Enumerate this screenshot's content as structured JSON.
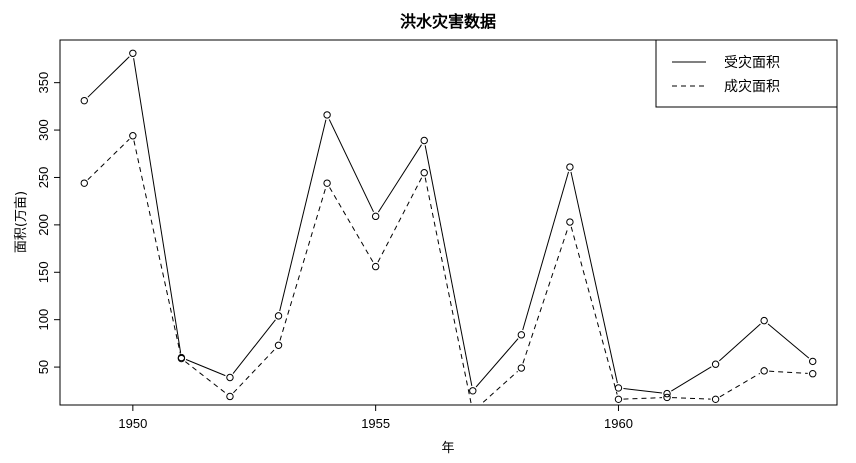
{
  "chart_data": {
    "type": "line",
    "title": "洪水灾害数据",
    "xlabel": "年",
    "ylabel": "面积(万亩)",
    "x": [
      1949,
      1950,
      1951,
      1952,
      1953,
      1954,
      1955,
      1956,
      1957,
      1958,
      1959,
      1960,
      1961,
      1962,
      1963,
      1964
    ],
    "xlim": [
      1948.5,
      1964.5
    ],
    "ylim": [
      10,
      395
    ],
    "x_ticks": [
      1950,
      1955,
      1960
    ],
    "y_ticks": [
      50,
      100,
      150,
      200,
      250,
      300,
      350
    ],
    "grid": false,
    "legend_position": "top-right",
    "series": [
      {
        "name": "受灾面积",
        "line_style": "solid",
        "color": "#000000",
        "values": [
          331,
          381,
          60,
          39,
          104,
          316,
          209,
          289,
          25,
          84,
          261,
          28,
          22,
          53,
          99,
          56
        ]
      },
      {
        "name": "成灾面积",
        "line_style": "dashed",
        "color": "#000000",
        "values": [
          244,
          294,
          59,
          19,
          73,
          244,
          156,
          255,
          3,
          49,
          203,
          16,
          18,
          16,
          46,
          43
        ]
      }
    ]
  }
}
